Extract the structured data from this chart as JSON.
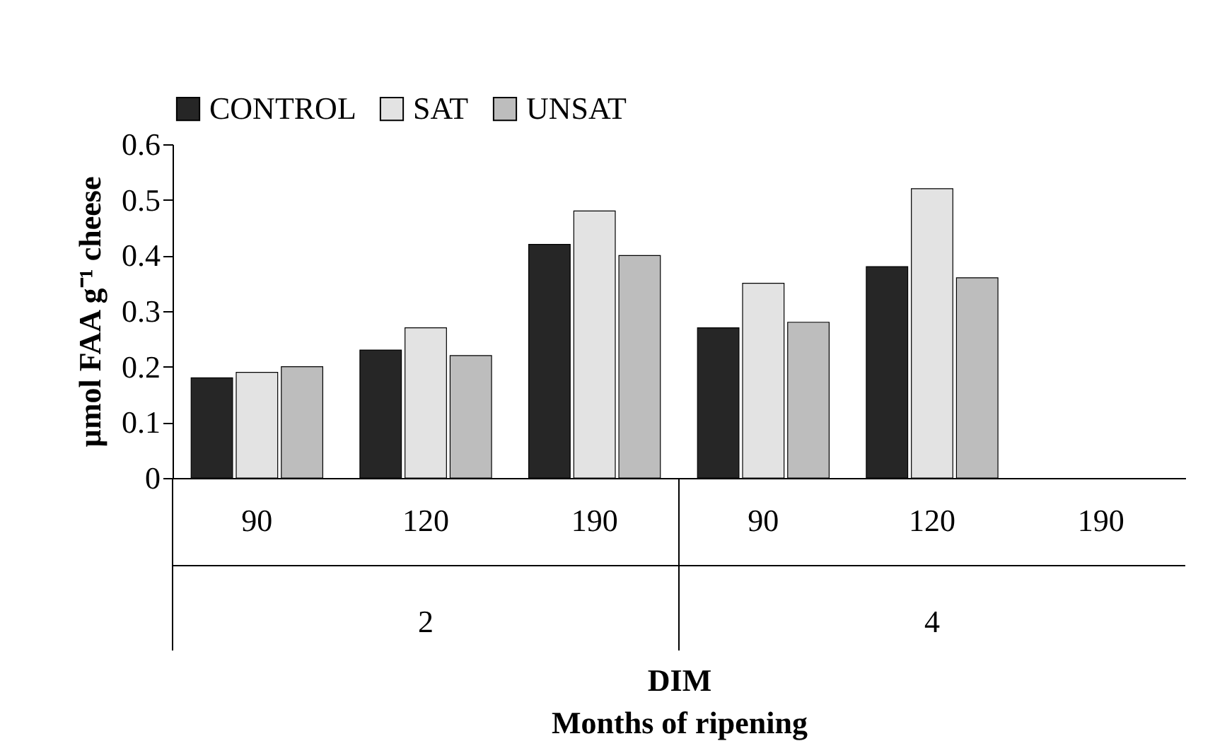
{
  "chart_data": {
    "type": "bar",
    "xlabel": "DIM\nMonths of ripening",
    "ylabel": "µmol FAA g⁻¹ cheese",
    "categories": [
      "90",
      "120",
      "190",
      "90",
      "120",
      "190"
    ],
    "annotations": [
      "2",
      "4"
    ],
    "series": [
      {
        "name": "CONTROL",
        "color": "#262626",
        "values": [
          0.18,
          0.23,
          0.42,
          0.27,
          0.38,
          null
        ]
      },
      {
        "name": "SAT",
        "color": "#e3e3e3",
        "values": [
          0.19,
          0.27,
          0.48,
          0.35,
          0.52,
          null
        ]
      },
      {
        "name": "UNSAT",
        "color": "#bdbdbd",
        "values": [
          0.2,
          0.22,
          0.4,
          0.28,
          0.36,
          null
        ]
      }
    ],
    "ylim": [
      0,
      0.6
    ],
    "yticks": [
      0,
      0.1,
      0.2,
      0.3,
      0.4,
      0.5,
      0.6
    ],
    "grid": false,
    "legend": "top"
  }
}
